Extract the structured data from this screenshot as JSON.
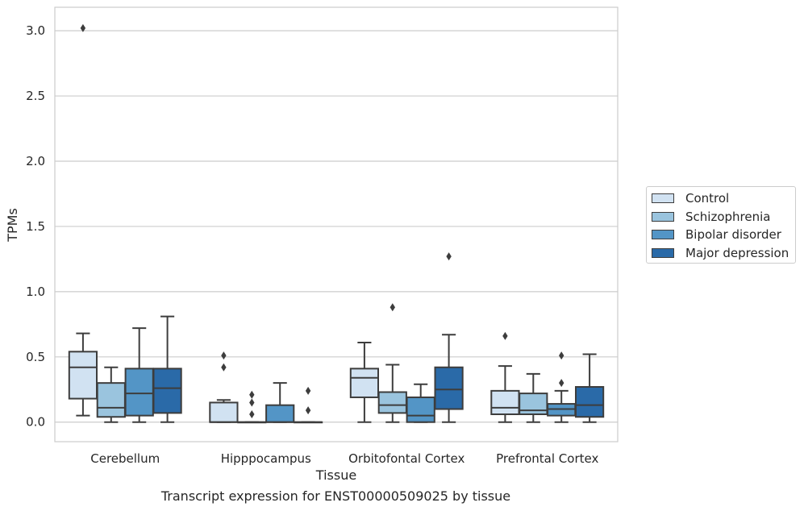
{
  "caption": "Transcript expression for ENST00000509025 by tissue",
  "chart_data": {
    "type": "box",
    "xlabel": "Tissue",
    "ylabel": "TPMs",
    "ylim": [
      -0.15,
      3.18
    ],
    "yticks": [
      0.0,
      0.5,
      1.0,
      1.5,
      2.0,
      2.5,
      3.0
    ],
    "ytick_labels": [
      "0.0",
      "0.5",
      "1.0",
      "1.5",
      "2.0",
      "2.5",
      "3.0"
    ],
    "grid": true,
    "legend_position": "right",
    "categories": [
      "Cerebellum",
      "Hipppocampus",
      "Orbitofontal Cortex",
      "Prefrontal Cortex"
    ],
    "series": [
      {
        "name": "Control",
        "color": "#d1e2f2",
        "boxes": [
          {
            "q1": 0.18,
            "median": 0.42,
            "q3": 0.54,
            "whisker_low": 0.05,
            "whisker_high": 0.68,
            "outliers": [
              3.02
            ]
          },
          {
            "q1": 0.0,
            "median": 0.0,
            "q3": 0.15,
            "whisker_low": 0.0,
            "whisker_high": 0.17,
            "outliers": [
              0.42,
              0.51
            ]
          },
          {
            "q1": 0.19,
            "median": 0.34,
            "q3": 0.41,
            "whisker_low": 0.0,
            "whisker_high": 0.61,
            "outliers": []
          },
          {
            "q1": 0.06,
            "median": 0.11,
            "q3": 0.24,
            "whisker_low": 0.0,
            "whisker_high": 0.43,
            "outliers": [
              0.66
            ]
          }
        ]
      },
      {
        "name": "Schizophrenia",
        "color": "#9ac4de",
        "boxes": [
          {
            "q1": 0.04,
            "median": 0.11,
            "q3": 0.3,
            "whisker_low": 0.0,
            "whisker_high": 0.42,
            "outliers": []
          },
          {
            "q1": 0.0,
            "median": 0.0,
            "q3": 0.0,
            "whisker_low": 0.0,
            "whisker_high": 0.0,
            "outliers": [
              0.06,
              0.15,
              0.21
            ]
          },
          {
            "q1": 0.07,
            "median": 0.13,
            "q3": 0.23,
            "whisker_low": 0.0,
            "whisker_high": 0.44,
            "outliers": [
              0.88
            ]
          },
          {
            "q1": 0.06,
            "median": 0.09,
            "q3": 0.22,
            "whisker_low": 0.0,
            "whisker_high": 0.37,
            "outliers": []
          }
        ]
      },
      {
        "name": "Bipolar disorder",
        "color": "#5395c6",
        "boxes": [
          {
            "q1": 0.05,
            "median": 0.22,
            "q3": 0.41,
            "whisker_low": 0.0,
            "whisker_high": 0.72,
            "outliers": []
          },
          {
            "q1": 0.0,
            "median": 0.0,
            "q3": 0.13,
            "whisker_low": 0.0,
            "whisker_high": 0.3,
            "outliers": []
          },
          {
            "q1": 0.0,
            "median": 0.05,
            "q3": 0.19,
            "whisker_low": 0.0,
            "whisker_high": 0.29,
            "outliers": []
          },
          {
            "q1": 0.05,
            "median": 0.1,
            "q3": 0.14,
            "whisker_low": 0.0,
            "whisker_high": 0.24,
            "outliers": [
              0.3,
              0.51
            ]
          }
        ]
      },
      {
        "name": "Major depression",
        "color": "#2a6aa8",
        "boxes": [
          {
            "q1": 0.07,
            "median": 0.26,
            "q3": 0.41,
            "whisker_low": 0.0,
            "whisker_high": 0.81,
            "outliers": []
          },
          {
            "q1": 0.0,
            "median": 0.0,
            "q3": 0.0,
            "whisker_low": 0.0,
            "whisker_high": 0.0,
            "outliers": [
              0.09,
              0.24
            ]
          },
          {
            "q1": 0.1,
            "median": 0.25,
            "q3": 0.42,
            "whisker_low": 0.0,
            "whisker_high": 0.67,
            "outliers": [
              1.27
            ]
          },
          {
            "q1": 0.04,
            "median": 0.13,
            "q3": 0.27,
            "whisker_low": 0.0,
            "whisker_high": 0.52,
            "outliers": []
          }
        ]
      }
    ]
  }
}
